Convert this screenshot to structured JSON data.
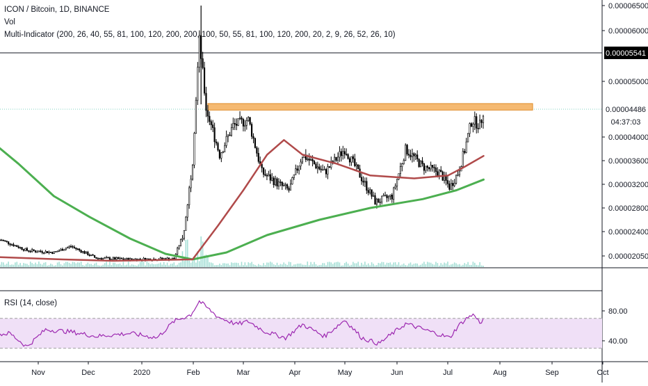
{
  "header": {
    "symbol_line": "ICON / Bitcoin, 1D, BINANCE",
    "volume_label": "Vol",
    "indicator_label": "Multi-Indicator (200, 26, 40, 55, 81, 100, 120, 200, 200, 100, 50, 55, 81, 100, 120, 200, 20, 2, 9, 26, 52, 26, 10)"
  },
  "rsi_label": "RSI (14, close)",
  "price_badges": {
    "horizontal_line": "0.00005541",
    "last_price": "0.00004486",
    "countdown": "04:37:03"
  },
  "colors": {
    "candle": "#000000",
    "ma_fast": "#b04a4a",
    "ma_slow": "#4caf50",
    "resistance_zone": "#f5b971",
    "resistance_border": "#e08e2c",
    "volume": "#a5dfd6",
    "rsi_line": "#9c27b0",
    "rsi_band": "#f0e0f7"
  },
  "chart_data": [
    {
      "type": "candlestick",
      "title": "ICON / Bitcoin, 1D, BINANCE",
      "y_tick_labels": [
        "0.00006500",
        "0.00006000",
        "0.00005000",
        "0.00004000",
        "0.00003600",
        "0.00003200",
        "0.00002800",
        "0.00002400",
        "0.00002050"
      ],
      "y_tick_values": [
        6.5e-05,
        6e-05,
        5e-05,
        4e-05,
        3.6e-05,
        3.2e-05,
        2.8e-05,
        2.4e-05,
        2.05e-05
      ],
      "x_tick_labels": [
        "Nov",
        "Dec",
        "2020",
        "Feb",
        "Mar",
        "Apr",
        "May",
        "Jun",
        "Jul",
        "Aug",
        "Sep",
        "Oct"
      ],
      "horizontal_line": 5.541e-05,
      "last_price": 4.486e-05,
      "resistance_zone": [
        4.47e-05,
        4.59e-05
      ],
      "price_path": [
        [
          "2019-10-10",
          2.28e-05
        ],
        [
          "2019-10-25",
          2.13e-05
        ],
        [
          "2019-11-10",
          2.1e-05
        ],
        [
          "2019-11-20",
          2.19e-05
        ],
        [
          "2019-12-05",
          2.02e-05
        ],
        [
          "2019-12-25",
          2e-05
        ],
        [
          "2020-01-20",
          2.01e-05
        ],
        [
          "2020-01-26",
          2.4e-05
        ],
        [
          "2020-01-31",
          3.6e-05
        ],
        [
          "2020-02-04",
          5.8e-05
        ],
        [
          "2020-02-08",
          4.5e-05
        ],
        [
          "2020-02-16",
          3.7e-05
        ],
        [
          "2020-02-24",
          4.2e-05
        ],
        [
          "2020-03-04",
          4.3e-05
        ],
        [
          "2020-03-12",
          3.4e-05
        ],
        [
          "2020-03-22",
          3.2e-05
        ],
        [
          "2020-03-28",
          3.1e-05
        ],
        [
          "2020-04-05",
          3.7e-05
        ],
        [
          "2020-04-18",
          3.4e-05
        ],
        [
          "2020-04-30",
          3.8e-05
        ],
        [
          "2020-05-10",
          3.3e-05
        ],
        [
          "2020-05-18",
          2.9e-05
        ],
        [
          "2020-05-28",
          3e-05
        ],
        [
          "2020-06-05",
          3.8e-05
        ],
        [
          "2020-06-15",
          3.5e-05
        ],
        [
          "2020-06-25",
          3.4e-05
        ],
        [
          "2020-07-01",
          3.15e-05
        ],
        [
          "2020-07-06",
          3.4e-05
        ],
        [
          "2020-07-10",
          3.8e-05
        ],
        [
          "2020-07-14",
          4.3e-05
        ],
        [
          "2020-07-19",
          4.2e-05
        ],
        [
          "2020-07-21",
          4.49e-05
        ]
      ],
      "ma_red": [
        [
          "2019-10-01",
          2.04e-05
        ],
        [
          "2019-11-15",
          2e-05
        ],
        [
          "2019-12-15",
          1.98e-05
        ],
        [
          "2020-01-31",
          2e-05
        ],
        [
          "2020-02-15",
          2.5e-05
        ],
        [
          "2020-03-01",
          3.1e-05
        ],
        [
          "2020-03-15",
          3.7e-05
        ],
        [
          "2020-03-25",
          3.95e-05
        ],
        [
          "2020-04-05",
          3.7e-05
        ],
        [
          "2020-04-25",
          3.55e-05
        ],
        [
          "2020-05-15",
          3.35e-05
        ],
        [
          "2020-06-10",
          3.3e-05
        ],
        [
          "2020-06-30",
          3.35e-05
        ],
        [
          "2020-07-10",
          3.5e-05
        ],
        [
          "2020-07-21",
          3.68e-05
        ]
      ],
      "ma_green": [
        [
          "2019-10-01",
          4e-05
        ],
        [
          "2019-10-20",
          3.55e-05
        ],
        [
          "2019-11-10",
          3e-05
        ],
        [
          "2019-12-01",
          2.65e-05
        ],
        [
          "2019-12-25",
          2.3e-05
        ],
        [
          "2020-01-15",
          2.08e-05
        ],
        [
          "2020-01-31",
          2e-05
        ],
        [
          "2020-02-20",
          2.1e-05
        ],
        [
          "2020-03-15",
          2.35e-05
        ],
        [
          "2020-04-15",
          2.6e-05
        ],
        [
          "2020-05-15",
          2.8e-05
        ],
        [
          "2020-06-15",
          2.95e-05
        ],
        [
          "2020-07-05",
          3.1e-05
        ],
        [
          "2020-07-21",
          3.28e-05
        ]
      ]
    },
    {
      "type": "line",
      "title": "RSI (14, close)",
      "y_tick_labels": [
        "80.00",
        "40.00"
      ],
      "y_tick_values": [
        80,
        40
      ],
      "band": [
        30,
        70
      ],
      "values": [
        [
          "2019-10-01",
          47
        ],
        [
          "2019-10-15",
          50
        ],
        [
          "2019-10-25",
          32
        ],
        [
          "2019-11-05",
          55
        ],
        [
          "2019-11-20",
          52
        ],
        [
          "2019-12-05",
          46
        ],
        [
          "2019-12-25",
          50
        ],
        [
          "2020-01-10",
          44
        ],
        [
          "2020-01-20",
          66
        ],
        [
          "2020-01-30",
          75
        ],
        [
          "2020-02-04",
          93
        ],
        [
          "2020-02-15",
          72
        ],
        [
          "2020-02-26",
          62
        ],
        [
          "2020-03-04",
          66
        ],
        [
          "2020-03-14",
          52
        ],
        [
          "2020-03-26",
          44
        ],
        [
          "2020-04-05",
          62
        ],
        [
          "2020-04-18",
          46
        ],
        [
          "2020-04-30",
          68
        ],
        [
          "2020-05-10",
          44
        ],
        [
          "2020-05-20",
          36
        ],
        [
          "2020-06-05",
          63
        ],
        [
          "2020-06-20",
          52
        ],
        [
          "2020-07-01",
          44
        ],
        [
          "2020-07-06",
          60
        ],
        [
          "2020-07-12",
          72
        ],
        [
          "2020-07-16",
          75
        ],
        [
          "2020-07-19",
          62
        ],
        [
          "2020-07-21",
          69
        ]
      ]
    }
  ]
}
